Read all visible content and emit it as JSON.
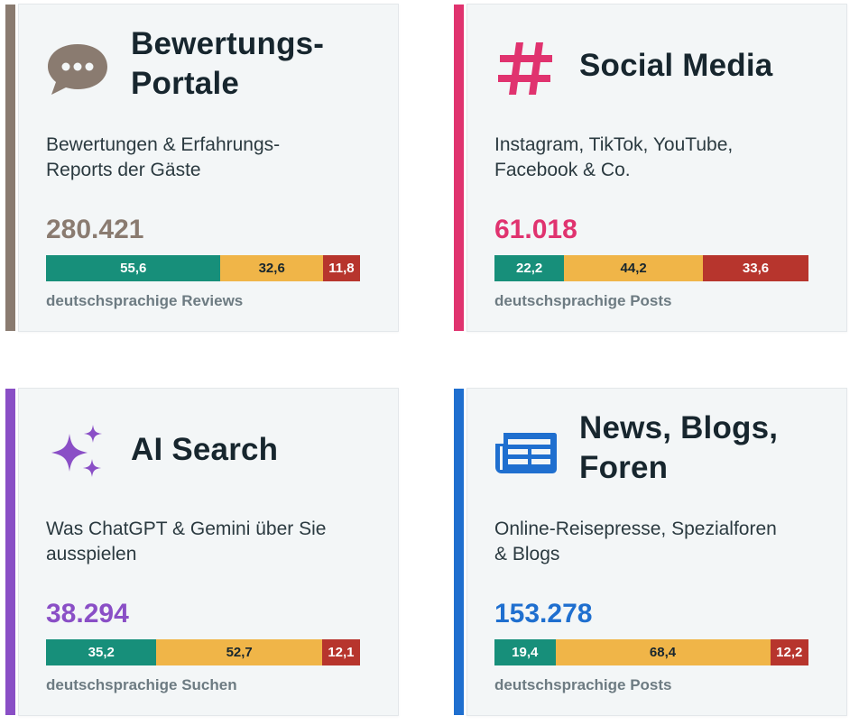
{
  "colors": {
    "positive": "#178f7a",
    "neutral": "#f0b548",
    "negative": "#b7352d"
  },
  "cards": [
    {
      "id": "reviews",
      "icon": "speech-bubble-icon",
      "accent_color": "#8a7b70",
      "title": "Bewertungs-\nPortale",
      "subtitle": "Bewertungen & Erfahrungs-Reports der Gäste",
      "number": "280.421",
      "segments": [
        {
          "label": "55,6",
          "value": 55.6
        },
        {
          "label": "32,6",
          "value": 32.6
        },
        {
          "label": "11,8",
          "value": 11.8
        }
      ],
      "caption": "deutschsprachige Reviews"
    },
    {
      "id": "social",
      "icon": "hashtag-icon",
      "accent_color": "#e0336f",
      "title": "Social Media",
      "subtitle": "Instagram, TikTok, YouTube, Facebook & Co.",
      "number": "61.018",
      "segments": [
        {
          "label": "22,2",
          "value": 22.2
        },
        {
          "label": "44,2",
          "value": 44.2
        },
        {
          "label": "33,6",
          "value": 33.6
        }
      ],
      "caption": "deutschsprachige Posts"
    },
    {
      "id": "ai",
      "icon": "sparkles-icon",
      "accent_color": "#8a4fc6",
      "title": "AI Search",
      "subtitle": "Was ChatGPT & Gemini über Sie ausspielen",
      "number": "38.294",
      "segments": [
        {
          "label": "35,2",
          "value": 35.2
        },
        {
          "label": "52,7",
          "value": 52.7
        },
        {
          "label": "12,1",
          "value": 12.1
        }
      ],
      "caption": "deutschsprachige Suchen"
    },
    {
      "id": "news",
      "icon": "newspaper-icon",
      "accent_color": "#1f6fcf",
      "title": "News, Blogs,\nForen",
      "subtitle": "Online-Reisepresse, Spezialforen & Blogs",
      "number": "153.278",
      "segments": [
        {
          "label": "19,4",
          "value": 19.4
        },
        {
          "label": "68,4",
          "value": 68.4
        },
        {
          "label": "12,2",
          "value": 12.2
        }
      ],
      "caption": "deutschsprachige Posts"
    }
  ]
}
